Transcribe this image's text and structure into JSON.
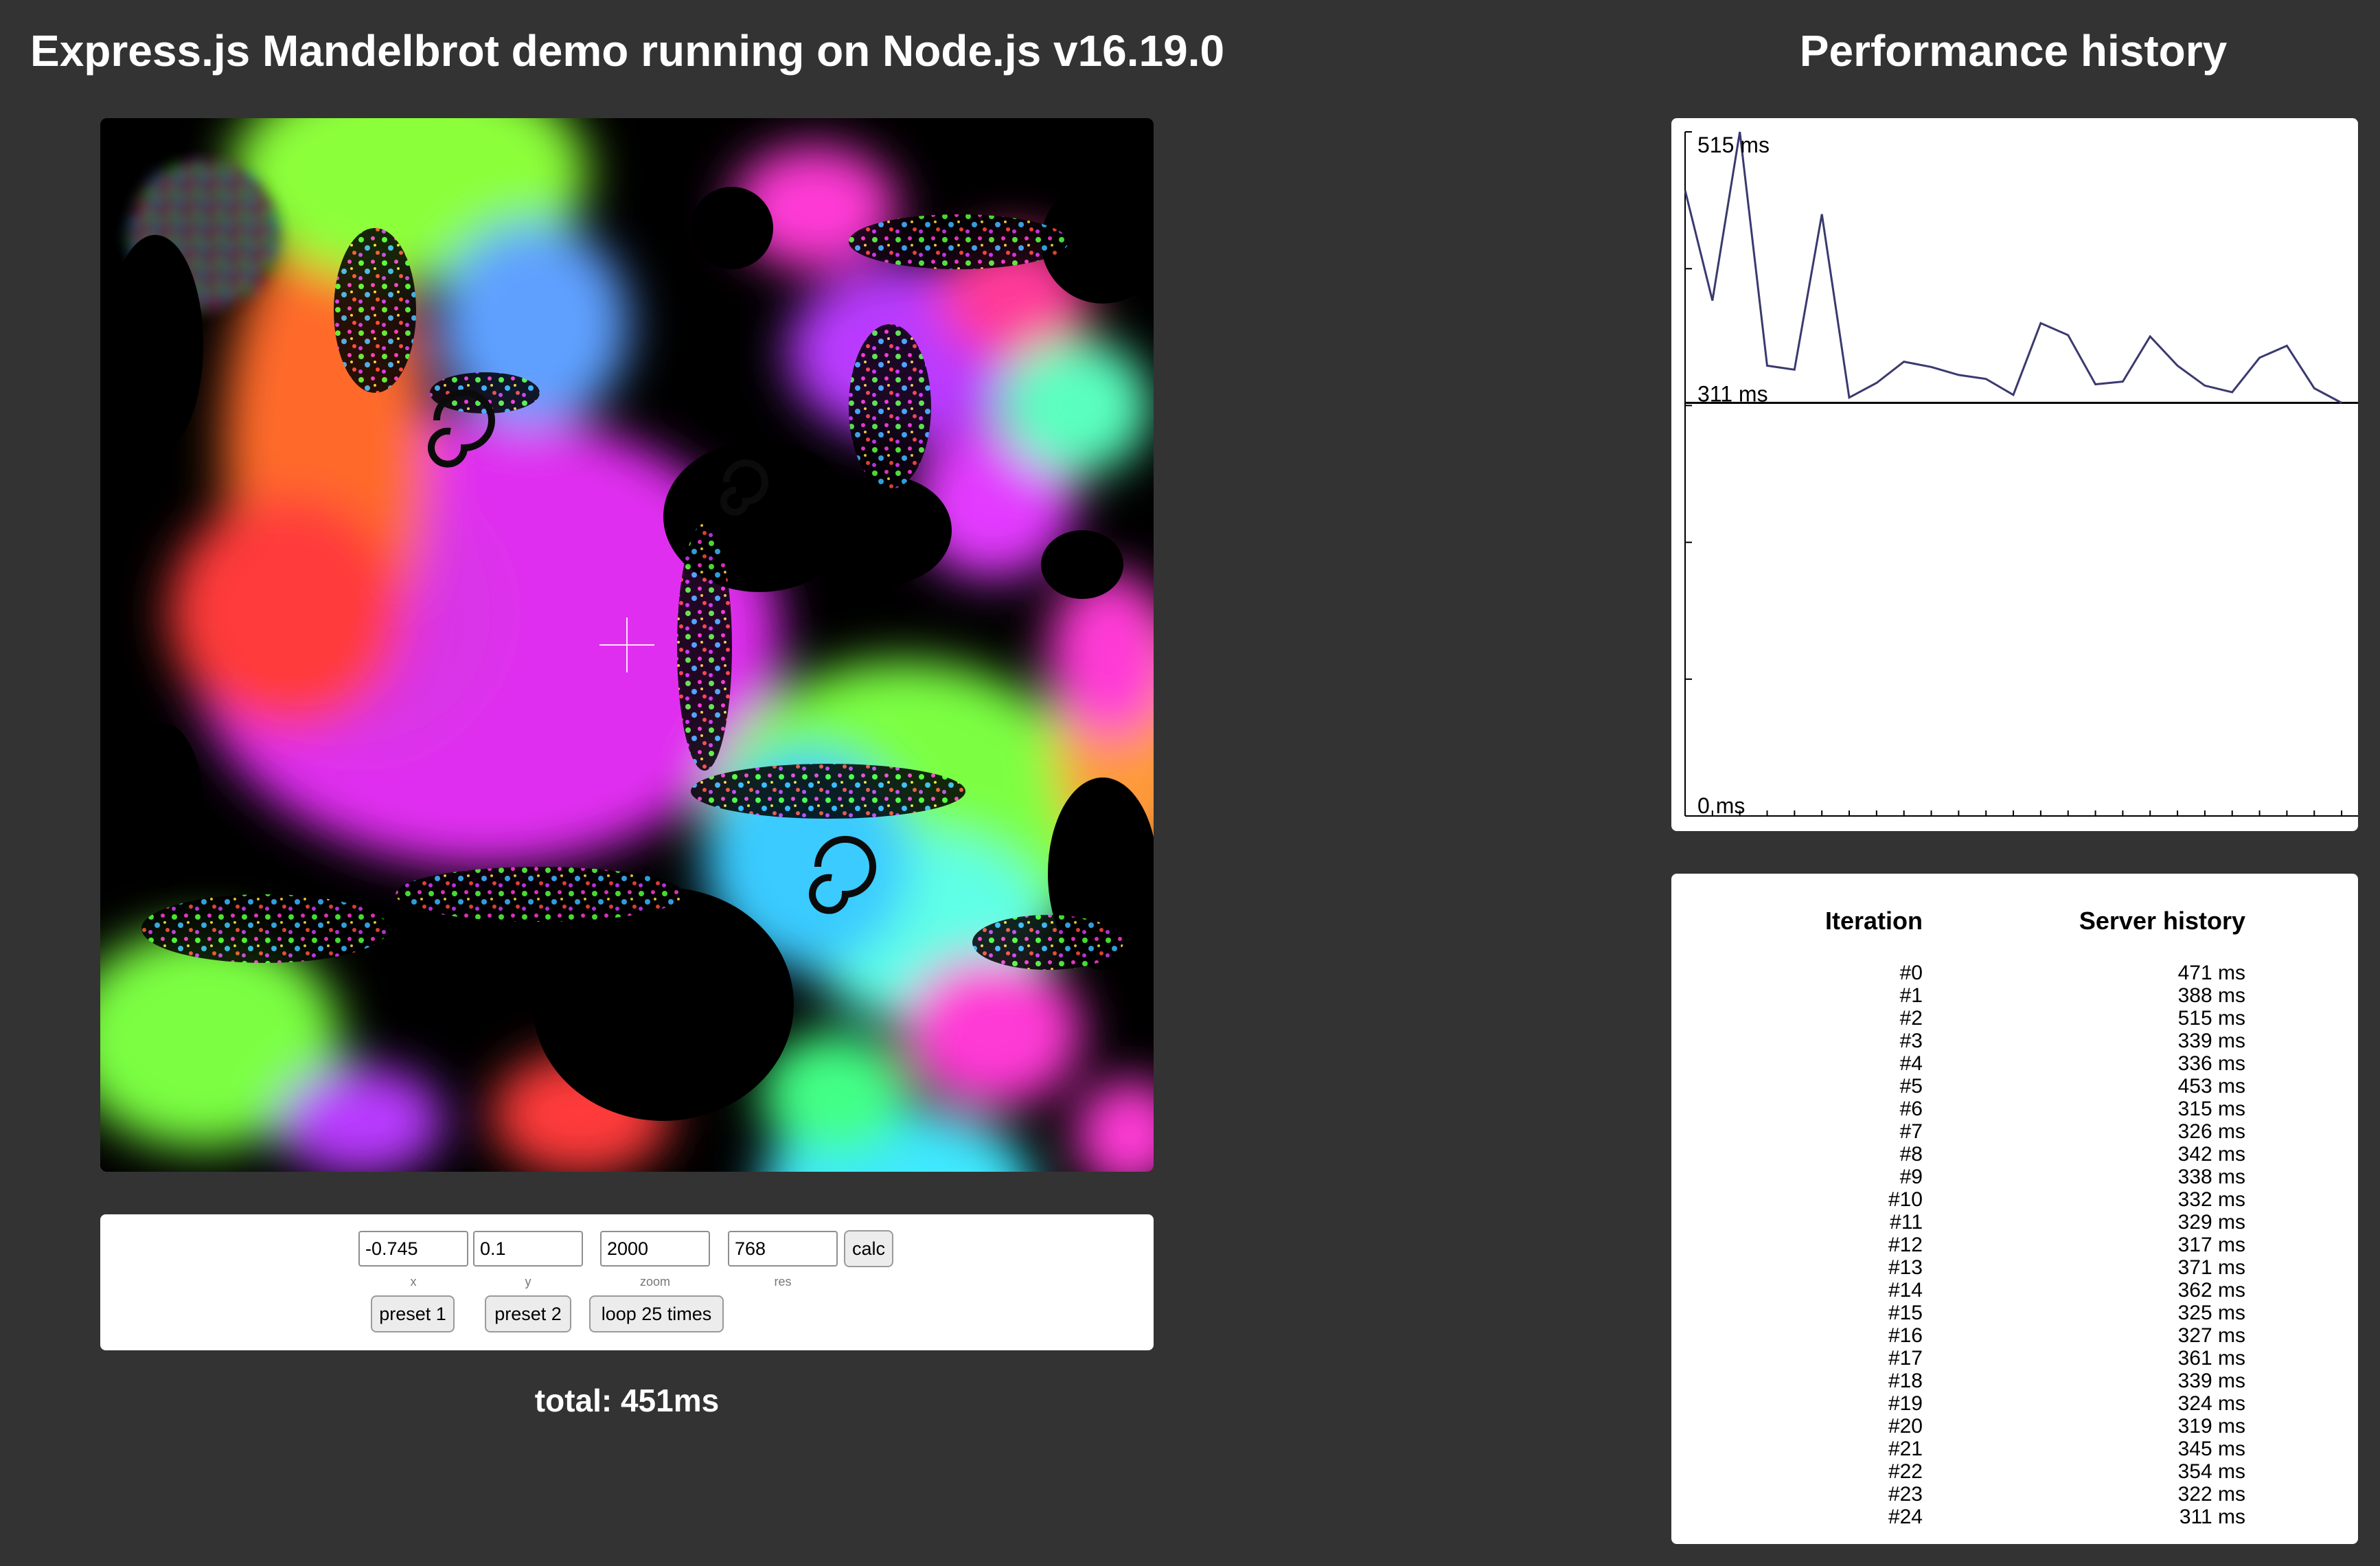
{
  "header": {
    "title": "Express.js Mandelbrot demo running on Node.js v16.19.0",
    "performance_title": "Performance history"
  },
  "controls": {
    "x_value": "-0.745",
    "y_value": "0.1",
    "zoom_value": "2000",
    "res_value": "768",
    "x_label": "x",
    "y_label": "y",
    "zoom_label": "zoom",
    "res_label": "res",
    "calc_label": "calc",
    "preset1_label": "preset 1",
    "preset2_label": "preset 2",
    "loop_label": "loop 25 times"
  },
  "total": "total: 451ms",
  "history": {
    "iteration_header": "Iteration",
    "server_header": "Server history",
    "rows": [
      {
        "iteration": "#0",
        "ms": "471 ms"
      },
      {
        "iteration": "#1",
        "ms": "388 ms"
      },
      {
        "iteration": "#2",
        "ms": "515 ms"
      },
      {
        "iteration": "#3",
        "ms": "339 ms"
      },
      {
        "iteration": "#4",
        "ms": "336 ms"
      },
      {
        "iteration": "#5",
        "ms": "453 ms"
      },
      {
        "iteration": "#6",
        "ms": "315 ms"
      },
      {
        "iteration": "#7",
        "ms": "326 ms"
      },
      {
        "iteration": "#8",
        "ms": "342 ms"
      },
      {
        "iteration": "#9",
        "ms": "338 ms"
      },
      {
        "iteration": "#10",
        "ms": "332 ms"
      },
      {
        "iteration": "#11",
        "ms": "329 ms"
      },
      {
        "iteration": "#12",
        "ms": "317 ms"
      },
      {
        "iteration": "#13",
        "ms": "371 ms"
      },
      {
        "iteration": "#14",
        "ms": "362 ms"
      },
      {
        "iteration": "#15",
        "ms": "325 ms"
      },
      {
        "iteration": "#16",
        "ms": "327 ms"
      },
      {
        "iteration": "#17",
        "ms": "361 ms"
      },
      {
        "iteration": "#18",
        "ms": "339 ms"
      },
      {
        "iteration": "#19",
        "ms": "324 ms"
      },
      {
        "iteration": "#20",
        "ms": "319 ms"
      },
      {
        "iteration": "#21",
        "ms": "345 ms"
      },
      {
        "iteration": "#22",
        "ms": "354 ms"
      },
      {
        "iteration": "#23",
        "ms": "322 ms"
      },
      {
        "iteration": "#24",
        "ms": "311 ms"
      }
    ]
  },
  "chart_data": {
    "type": "line",
    "x": [
      0,
      1,
      2,
      3,
      4,
      5,
      6,
      7,
      8,
      9,
      10,
      11,
      12,
      13,
      14,
      15,
      16,
      17,
      18,
      19,
      20,
      21,
      22,
      23,
      24
    ],
    "values": [
      471,
      388,
      515,
      339,
      336,
      453,
      315,
      326,
      342,
      338,
      332,
      329,
      317,
      371,
      362,
      325,
      327,
      361,
      339,
      324,
      319,
      345,
      354,
      322,
      311
    ],
    "ylim": [
      0,
      515
    ],
    "max_label": "515 ms",
    "min_label": "311 ms",
    "zero_label": "0 ms",
    "line_color": "#3a3a6e",
    "grid": false
  }
}
